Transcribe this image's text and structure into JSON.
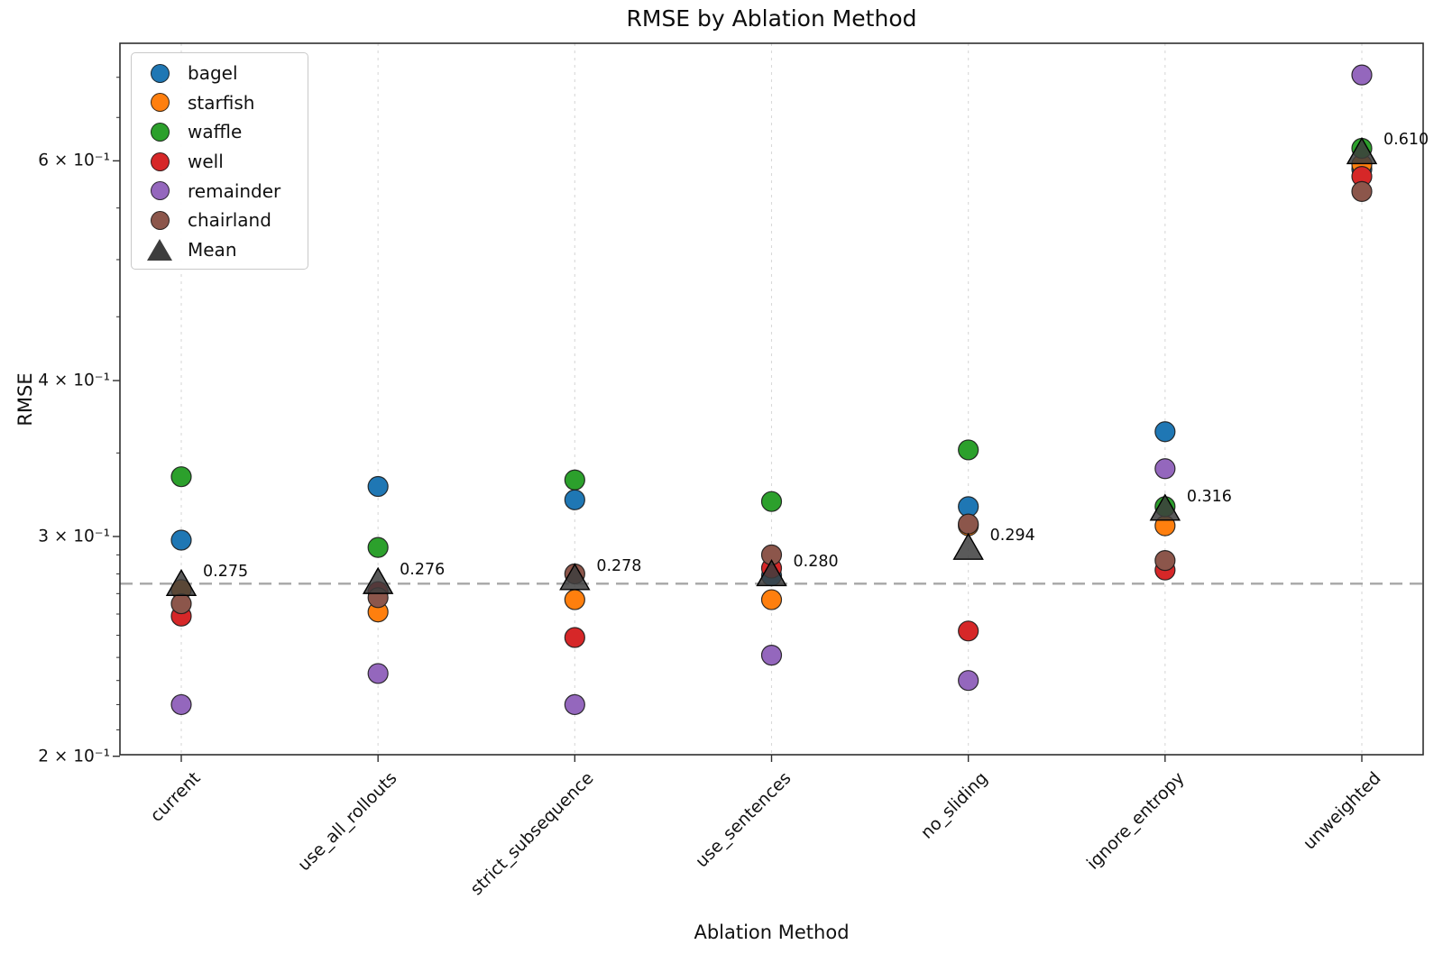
{
  "chart_data": {
    "type": "scatter",
    "title": "RMSE by Ablation Method",
    "xlabel": "Ablation Method",
    "ylabel": "RMSE",
    "y_scale": "log",
    "ylim": [
      0.2,
      0.746
    ],
    "grid": "vertical-dashed",
    "legend_position": "upper-left",
    "categories": [
      "current",
      "use_all_rollouts",
      "strict_subsequence",
      "use_sentences",
      "no_sliding",
      "ignore_entropy",
      "unweighted"
    ],
    "series": [
      {
        "name": "bagel",
        "color": "#1f77b4",
        "values": [
          0.298,
          0.329,
          0.321,
          0.279,
          0.317,
          0.364,
          0.591
        ]
      },
      {
        "name": "starfish",
        "color": "#ff7f0e",
        "values": [
          0.272,
          0.261,
          0.267,
          0.267,
          0.306,
          0.306,
          0.596
        ]
      },
      {
        "name": "waffle",
        "color": "#2ca02c",
        "values": [
          0.335,
          0.294,
          0.333,
          0.32,
          0.352,
          0.317,
          0.614
        ]
      },
      {
        "name": "well",
        "color": "#d62728",
        "values": [
          0.259,
          0.271,
          0.249,
          0.283,
          0.252,
          0.282,
          0.583
        ]
      },
      {
        "name": "remainder",
        "color": "#9467bd",
        "values": [
          0.22,
          0.233,
          0.22,
          0.241,
          0.23,
          0.34,
          0.703
        ]
      },
      {
        "name": "chairland",
        "color": "#8c564b",
        "values": [
          0.265,
          0.268,
          0.28,
          0.29,
          0.307,
          0.287,
          0.567
        ]
      }
    ],
    "mean": {
      "label": "Mean",
      "color": "#3d3d3d",
      "values": [
        0.275,
        0.276,
        0.278,
        0.28,
        0.294,
        0.316,
        0.61
      ],
      "annotations": [
        "0.275",
        "0.276",
        "0.278",
        "0.280",
        "0.294",
        "0.316",
        "0.610"
      ]
    },
    "reference_line": {
      "value": 0.275,
      "style": "dashed",
      "color": "#a6a6a6"
    },
    "yticks": [
      {
        "value": 0.2,
        "label": "2 × 10⁻¹"
      },
      {
        "value": 0.3,
        "label": "3 × 10⁻¹"
      },
      {
        "value": 0.4,
        "label": "4 × 10⁻¹"
      },
      {
        "value": 0.6,
        "label": "6 × 10⁻¹"
      }
    ]
  }
}
